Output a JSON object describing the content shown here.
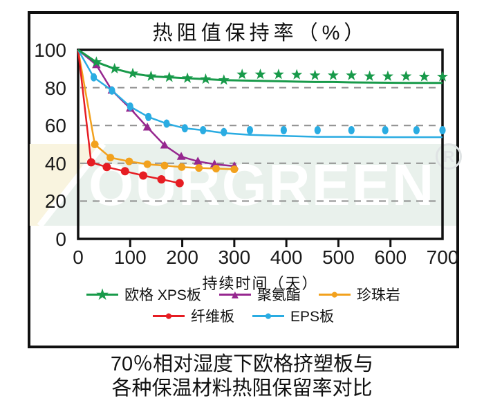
{
  "title": "热阻值保持率（%）",
  "caption": [
    "70％相对湿度下欧格挤塑板与",
    "各种保温材料热阻保留率对比"
  ],
  "watermark": {
    "brand": "OURGREEN",
    "registered": "R"
  },
  "colors": {
    "xps_green": "#189a4a",
    "polyurethane_purple": "#96278f",
    "perlite_orange": "#f2a11d",
    "fiberboard_red": "#e61d23",
    "eps_blue": "#2aace2",
    "grid_gray": "#8f8f8f",
    "axis_black": "#101010"
  },
  "legend": {
    "rows": [
      [
        {
          "key": "xps",
          "label": "欧格 XPS板",
          "marker": "star",
          "color": "#189a4a"
        },
        {
          "key": "polyurethane",
          "label": "聚氨酯",
          "marker": "triangle",
          "color": "#96278f"
        },
        {
          "key": "perlite",
          "label": "珍珠岩",
          "marker": "circle",
          "color": "#f2a11d"
        }
      ],
      [
        {
          "key": "fiberboard",
          "label": "纤维板",
          "marker": "circle",
          "color": "#e61d23"
        },
        {
          "key": "eps",
          "label": "EPS板",
          "marker": "circle",
          "color": "#2aace2"
        }
      ]
    ]
  },
  "chart_data": {
    "type": "line",
    "title": "热阻值保持率（%）",
    "xlabel": "持续时间（天）",
    "ylabel": "",
    "xlim": [
      0,
      700
    ],
    "ylim": [
      0,
      100
    ],
    "xticks": [
      0,
      100,
      200,
      300,
      400,
      500,
      600,
      700
    ],
    "yticks": [
      0,
      20,
      40,
      60,
      80,
      100
    ],
    "gridlines": [
      20,
      40,
      60,
      80
    ],
    "grid_style": "dashed-horizontal",
    "legend_position": "below",
    "series": [
      {
        "key": "polyurethane",
        "name": "聚氨酯",
        "color": "#96278f",
        "marker": "triangle",
        "x": [
          0,
          35,
          65,
          100,
          133,
          166,
          198,
          230,
          262,
          300
        ],
        "y": [
          100,
          92,
          78.5,
          69,
          59,
          49.5,
          43.5,
          41,
          39.5,
          38.5
        ]
      },
      {
        "key": "perlite",
        "name": "珍珠岩",
        "color": "#f2a11d",
        "marker": "circle",
        "x": [
          0,
          32,
          62,
          98,
          133,
          166,
          199,
          232,
          265,
          300
        ],
        "y": [
          100,
          50,
          43,
          41,
          39.5,
          38.8,
          38,
          37.5,
          37.2,
          36.8
        ]
      },
      {
        "key": "fiberboard",
        "name": "纤维板",
        "color": "#e61d23",
        "marker": "circle",
        "x": [
          0,
          25,
          55,
          90,
          125,
          160,
          195
        ],
        "y": [
          100,
          40.5,
          38,
          35.8,
          33.5,
          31.5,
          29.5
        ]
      },
      {
        "key": "eps",
        "name": "EPS板",
        "color": "#2aace2",
        "marker": "ellipse",
        "x": [
          0,
          30,
          65,
          100,
          135,
          170,
          205,
          240,
          280,
          330,
          395,
          460,
          525,
          590,
          650,
          700
        ],
        "y": [
          100,
          85.5,
          78.5,
          70,
          64.5,
          61,
          58.5,
          57.5,
          56.5,
          57.5,
          57.5,
          57.5,
          57.5,
          57.5,
          57.5,
          57.5
        ],
        "line_y": [
          100,
          85.5,
          78.5,
          70,
          64.5,
          61,
          58.5,
          57.5,
          56,
          55,
          54.5,
          54,
          54,
          53.8,
          53.8,
          53.8
        ]
      },
      {
        "key": "xps",
        "name": "欧格 XPS板",
        "color": "#189a4a",
        "marker": "star",
        "x": [
          0,
          35,
          70,
          105,
          140,
          175,
          210,
          245,
          280,
          315,
          350,
          385,
          420,
          455,
          490,
          525,
          560,
          595,
          630,
          665,
          700
        ],
        "y": [
          100,
          93.5,
          90,
          87.5,
          86,
          85.5,
          85,
          84.5,
          84,
          87,
          87,
          87,
          86.8,
          86.5,
          86.5,
          86.5,
          86,
          86,
          86,
          85.8,
          85.8
        ],
        "line_y": [
          100,
          93.5,
          90,
          87.5,
          86,
          85.5,
          85,
          84.5,
          84,
          83.8,
          83.6,
          83.4,
          83.2,
          83,
          83,
          82.8,
          82.7,
          82.6,
          82.5,
          82.5,
          82.5
        ]
      }
    ]
  }
}
